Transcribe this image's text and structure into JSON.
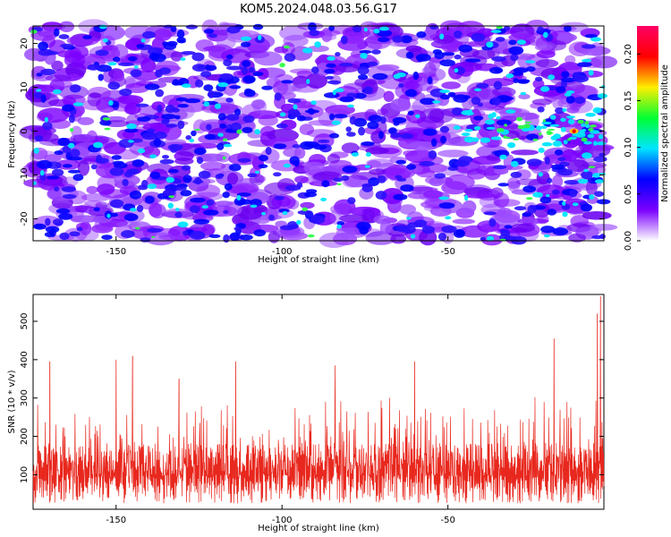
{
  "title": "KOM5.2024.048.03.56.G17",
  "chart_data": [
    {
      "type": "heatmap",
      "xlabel": "Height of straight line (km)",
      "ylabel": "Frequency (Hz)",
      "xlim": [
        -175,
        -3
      ],
      "ylim": [
        -25,
        24
      ],
      "x_ticks": [
        -150,
        -100,
        -50
      ],
      "y_ticks": [
        -20,
        -10,
        0,
        10,
        20
      ],
      "colorbar": {
        "label": "Normalized spectral amplitude",
        "range": [
          0.0,
          0.23
        ],
        "ticks": [
          0.0,
          0.05,
          0.1,
          0.15,
          0.2
        ],
        "tick_labels": [
          "0.00",
          "0.05",
          "0.10",
          "0.15",
          "0.20"
        ],
        "colormap": [
          "#ffffff",
          "#7b00ff",
          "#0000ff",
          "#00e5ff",
          "#00ff33",
          "#ffee00",
          "#ff0000",
          "#ff0066"
        ]
      },
      "notable_features": [
        {
          "description": "enhanced amplitude band",
          "x_range": [
            -35,
            -3
          ],
          "y_center": 0
        },
        {
          "description": "peak amplitude",
          "x": -12,
          "y": 0,
          "value": 0.22
        }
      ]
    },
    {
      "type": "line",
      "xlabel": "Height of straight line (km)",
      "ylabel": "SNR (10 * v/v)",
      "xlim": [
        -175,
        -3
      ],
      "ylim": [
        10,
        570
      ],
      "x_ticks": [
        -150,
        -100,
        -50
      ],
      "y_ticks": [
        100,
        200,
        300,
        400,
        500
      ],
      "line_color": "#e8281e",
      "series_summary": {
        "typical_range": [
          40,
          300
        ],
        "baseline": 120
      },
      "peaks": [
        {
          "x": -170,
          "y": 395
        },
        {
          "x": -150,
          "y": 400
        },
        {
          "x": -145,
          "y": 410
        },
        {
          "x": -131,
          "y": 350
        },
        {
          "x": -114,
          "y": 395
        },
        {
          "x": -84,
          "y": 385
        },
        {
          "x": -60,
          "y": 395
        },
        {
          "x": -18,
          "y": 455
        },
        {
          "x": -5,
          "y": 520
        },
        {
          "x": -4,
          "y": 565
        }
      ]
    }
  ]
}
